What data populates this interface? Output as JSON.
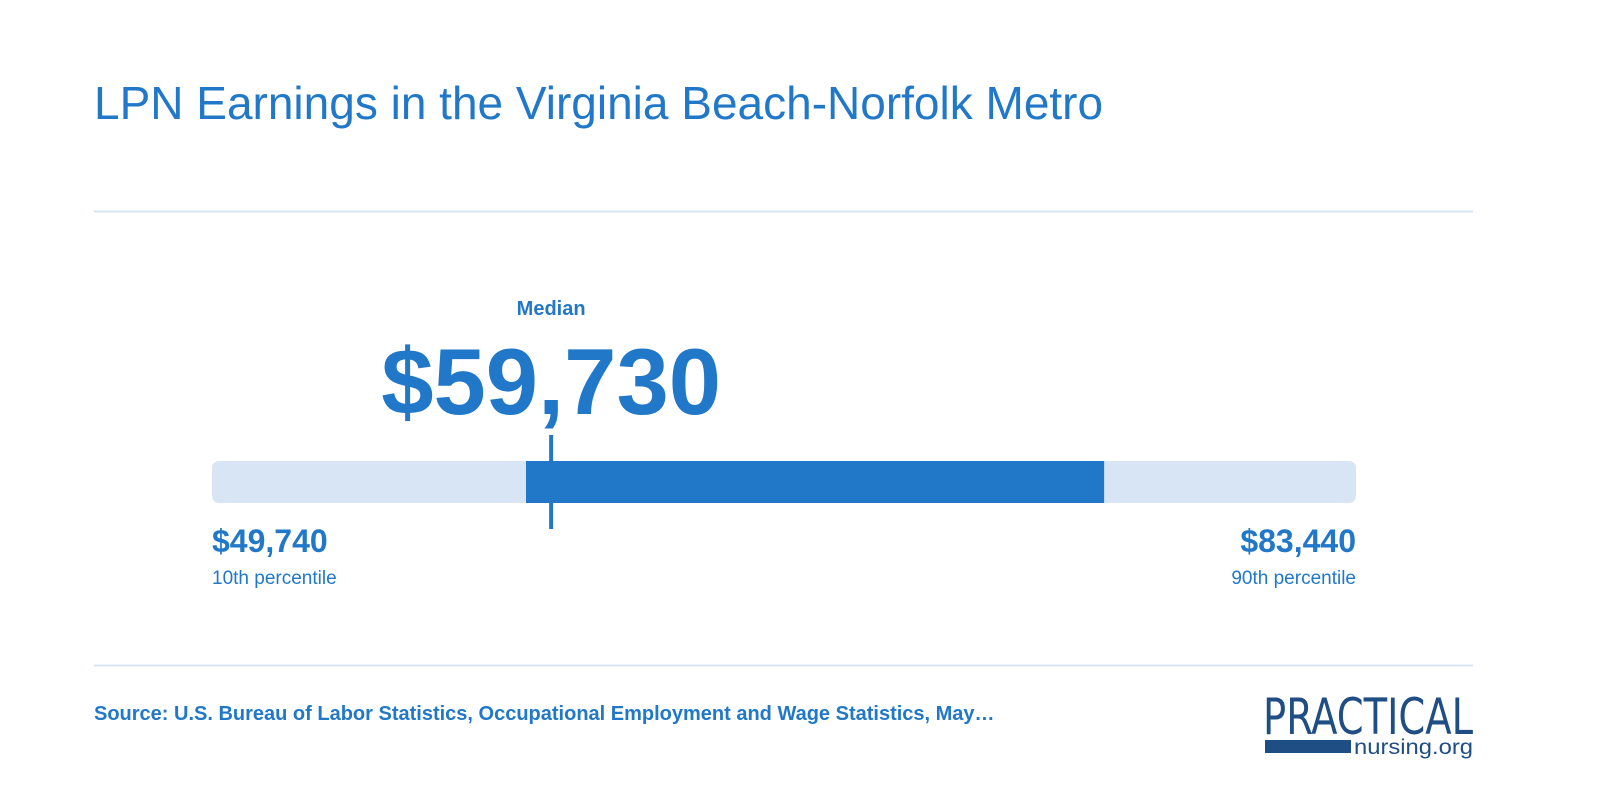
{
  "chart_data": {
    "type": "range",
    "title": "LPN Earnings in the Virginia Beach-Norfolk Metro",
    "median": {
      "label": "Median",
      "value": 59730,
      "value_label": "$59,730"
    },
    "low": {
      "value": 49740,
      "value_label": "$49,740",
      "label": "10th percentile"
    },
    "high": {
      "value": 83440,
      "value_label": "$83,440",
      "label": "90th percentile"
    },
    "band": [
      58990,
      76020
    ],
    "track_color": "#d7e5f5",
    "color": "#2178c9"
  },
  "footer": {
    "source": "Source: U.S. Bureau of Labor Statistics, Occupational Employment and Wage Statistics, May…",
    "logo_top": "PRACTICAL",
    "logo_bottom": "nursing.org"
  }
}
